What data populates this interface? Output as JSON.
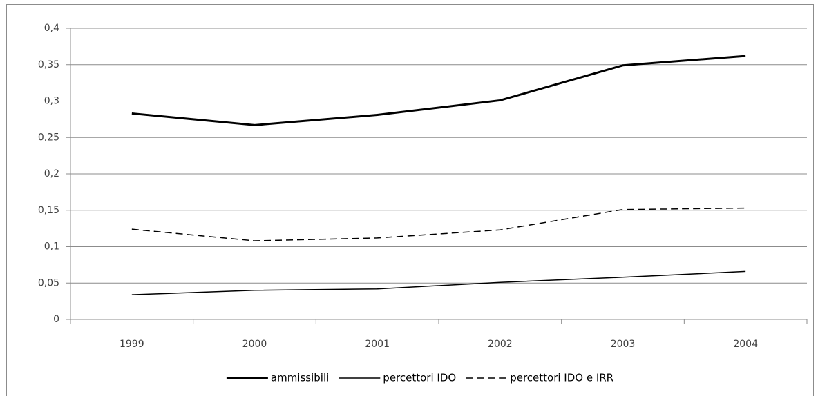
{
  "chart_data": {
    "type": "line",
    "categories": [
      "1999",
      "2000",
      "2001",
      "2002",
      "2003",
      "2004"
    ],
    "series": [
      {
        "name": "ammissibili",
        "color": "#000000",
        "line_width": 3,
        "dash": false,
        "values": [
          0.283,
          0.267,
          0.281,
          0.301,
          0.349,
          0.362
        ]
      },
      {
        "name": "percettori IDO",
        "color": "#000000",
        "line_width": 1.5,
        "dash": false,
        "values": [
          0.034,
          0.04,
          0.042,
          0.051,
          0.058,
          0.066
        ]
      },
      {
        "name": "percettori IDO e IRR",
        "color": "#000000",
        "line_width": 1.5,
        "dash": true,
        "values": [
          0.124,
          0.108,
          0.112,
          0.123,
          0.151,
          0.153
        ]
      }
    ],
    "ylim": [
      0,
      0.4
    ],
    "yticks": [
      0,
      {
        "value": 0.05,
        "label": "0,05"
      },
      {
        "value": 0.1,
        "label": "0,1"
      },
      {
        "value": 0.15,
        "label": "0,15"
      },
      {
        "value": 0.2,
        "label": "0,2"
      },
      {
        "value": 0.25,
        "label": "0,25"
      },
      {
        "value": 0.3,
        "label": "0,3"
      },
      {
        "value": 0.35,
        "label": "0,35"
      },
      {
        "value": 0.4,
        "label": "0,4"
      }
    ],
    "grid": true,
    "legend": "bottom"
  }
}
